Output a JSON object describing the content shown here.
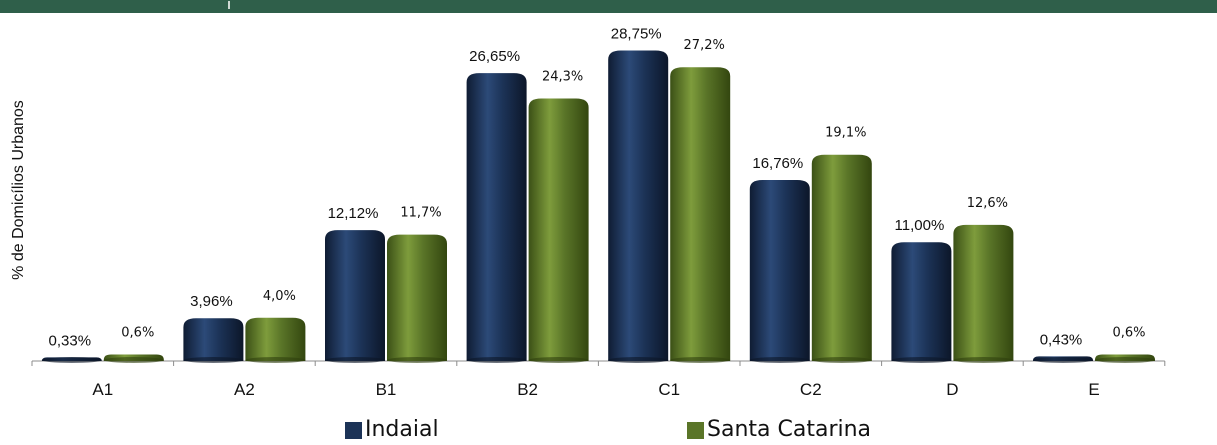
{
  "chart_data": {
    "type": "bar",
    "title": "",
    "xlabel": "",
    "ylabel": "% de Domicílios Urbanos",
    "categories": [
      "A1",
      "A2",
      "B1",
      "B2",
      "C1",
      "C2",
      "D",
      "E"
    ],
    "series": [
      {
        "name": "Indaial",
        "color": "#1c3357",
        "values": [
          0.33,
          3.96,
          12.12,
          26.65,
          28.75,
          16.76,
          11.0,
          0.43
        ],
        "labels": [
          "0,33%",
          "3,96%",
          "12,12%",
          "26,65%",
          "28,75%",
          "16,76%",
          "11,00%",
          "0,43%"
        ]
      },
      {
        "name": "Santa Catarina",
        "color": "#5a7528",
        "values": [
          0.6,
          4.0,
          11.7,
          24.3,
          27.2,
          19.1,
          12.6,
          0.6
        ],
        "labels": [
          "0,6%",
          "4,0%",
          "11,7%",
          "24,3%",
          "27,2%",
          "19,1%",
          "12,6%",
          "0,6%"
        ]
      }
    ],
    "ylim": [
      0,
      30
    ],
    "grid": false,
    "legend_position": "bottom"
  }
}
